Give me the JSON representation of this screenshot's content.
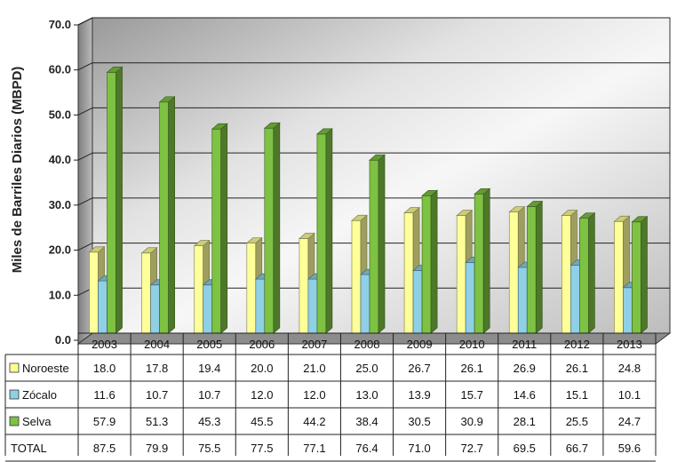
{
  "chart_data": {
    "type": "bar",
    "ylabel": "Miles de Barriles Diarios (MBPD)",
    "ylim": [
      0,
      70
    ],
    "yticks": [
      "0.0",
      "10.0",
      "20.0",
      "30.0",
      "40.0",
      "50.0",
      "60.0",
      "70.0"
    ],
    "grid": true,
    "legend": "table-left",
    "categories": [
      "2003",
      "2004",
      "2005",
      "2006",
      "2007",
      "2008",
      "2009",
      "2010",
      "2011",
      "2012",
      "2013"
    ],
    "series": [
      {
        "name": "Noroeste",
        "color": "#ffff99",
        "values": [
          18.0,
          17.8,
          19.4,
          20.0,
          21.0,
          25.0,
          26.7,
          26.1,
          26.9,
          26.1,
          24.8
        ],
        "labels": [
          "18.0",
          "17.8",
          "19.4",
          "20.0",
          "21.0",
          "25.0",
          "26.7",
          "26.1",
          "26.9",
          "26.1",
          "24.8"
        ]
      },
      {
        "name": "Zócalo",
        "color": "#8fd0e6",
        "values": [
          11.6,
          10.7,
          10.7,
          12.0,
          12.0,
          13.0,
          13.9,
          15.7,
          14.6,
          15.1,
          10.1
        ],
        "labels": [
          "11.6",
          "10.7",
          "10.7",
          "12.0",
          "12.0",
          "13.0",
          "13.9",
          "15.7",
          "14.6",
          "15.1",
          "10.1"
        ]
      },
      {
        "name": "Selva",
        "color": "#7dc242",
        "values": [
          57.9,
          51.3,
          45.3,
          45.5,
          44.2,
          38.4,
          30.5,
          30.9,
          28.1,
          25.5,
          24.7
        ],
        "labels": [
          "57.9",
          "51.3",
          "45.3",
          "45.5",
          "44.2",
          "38.4",
          "30.5",
          "30.9",
          "28.1",
          "25.5",
          "24.7"
        ]
      }
    ],
    "total": {
      "name": "TOTAL",
      "labels": [
        "87.5",
        "79.9",
        "75.5",
        "77.5",
        "77.1",
        "76.4",
        "71.0",
        "72.7",
        "69.5",
        "66.7",
        "59.6"
      ]
    }
  }
}
